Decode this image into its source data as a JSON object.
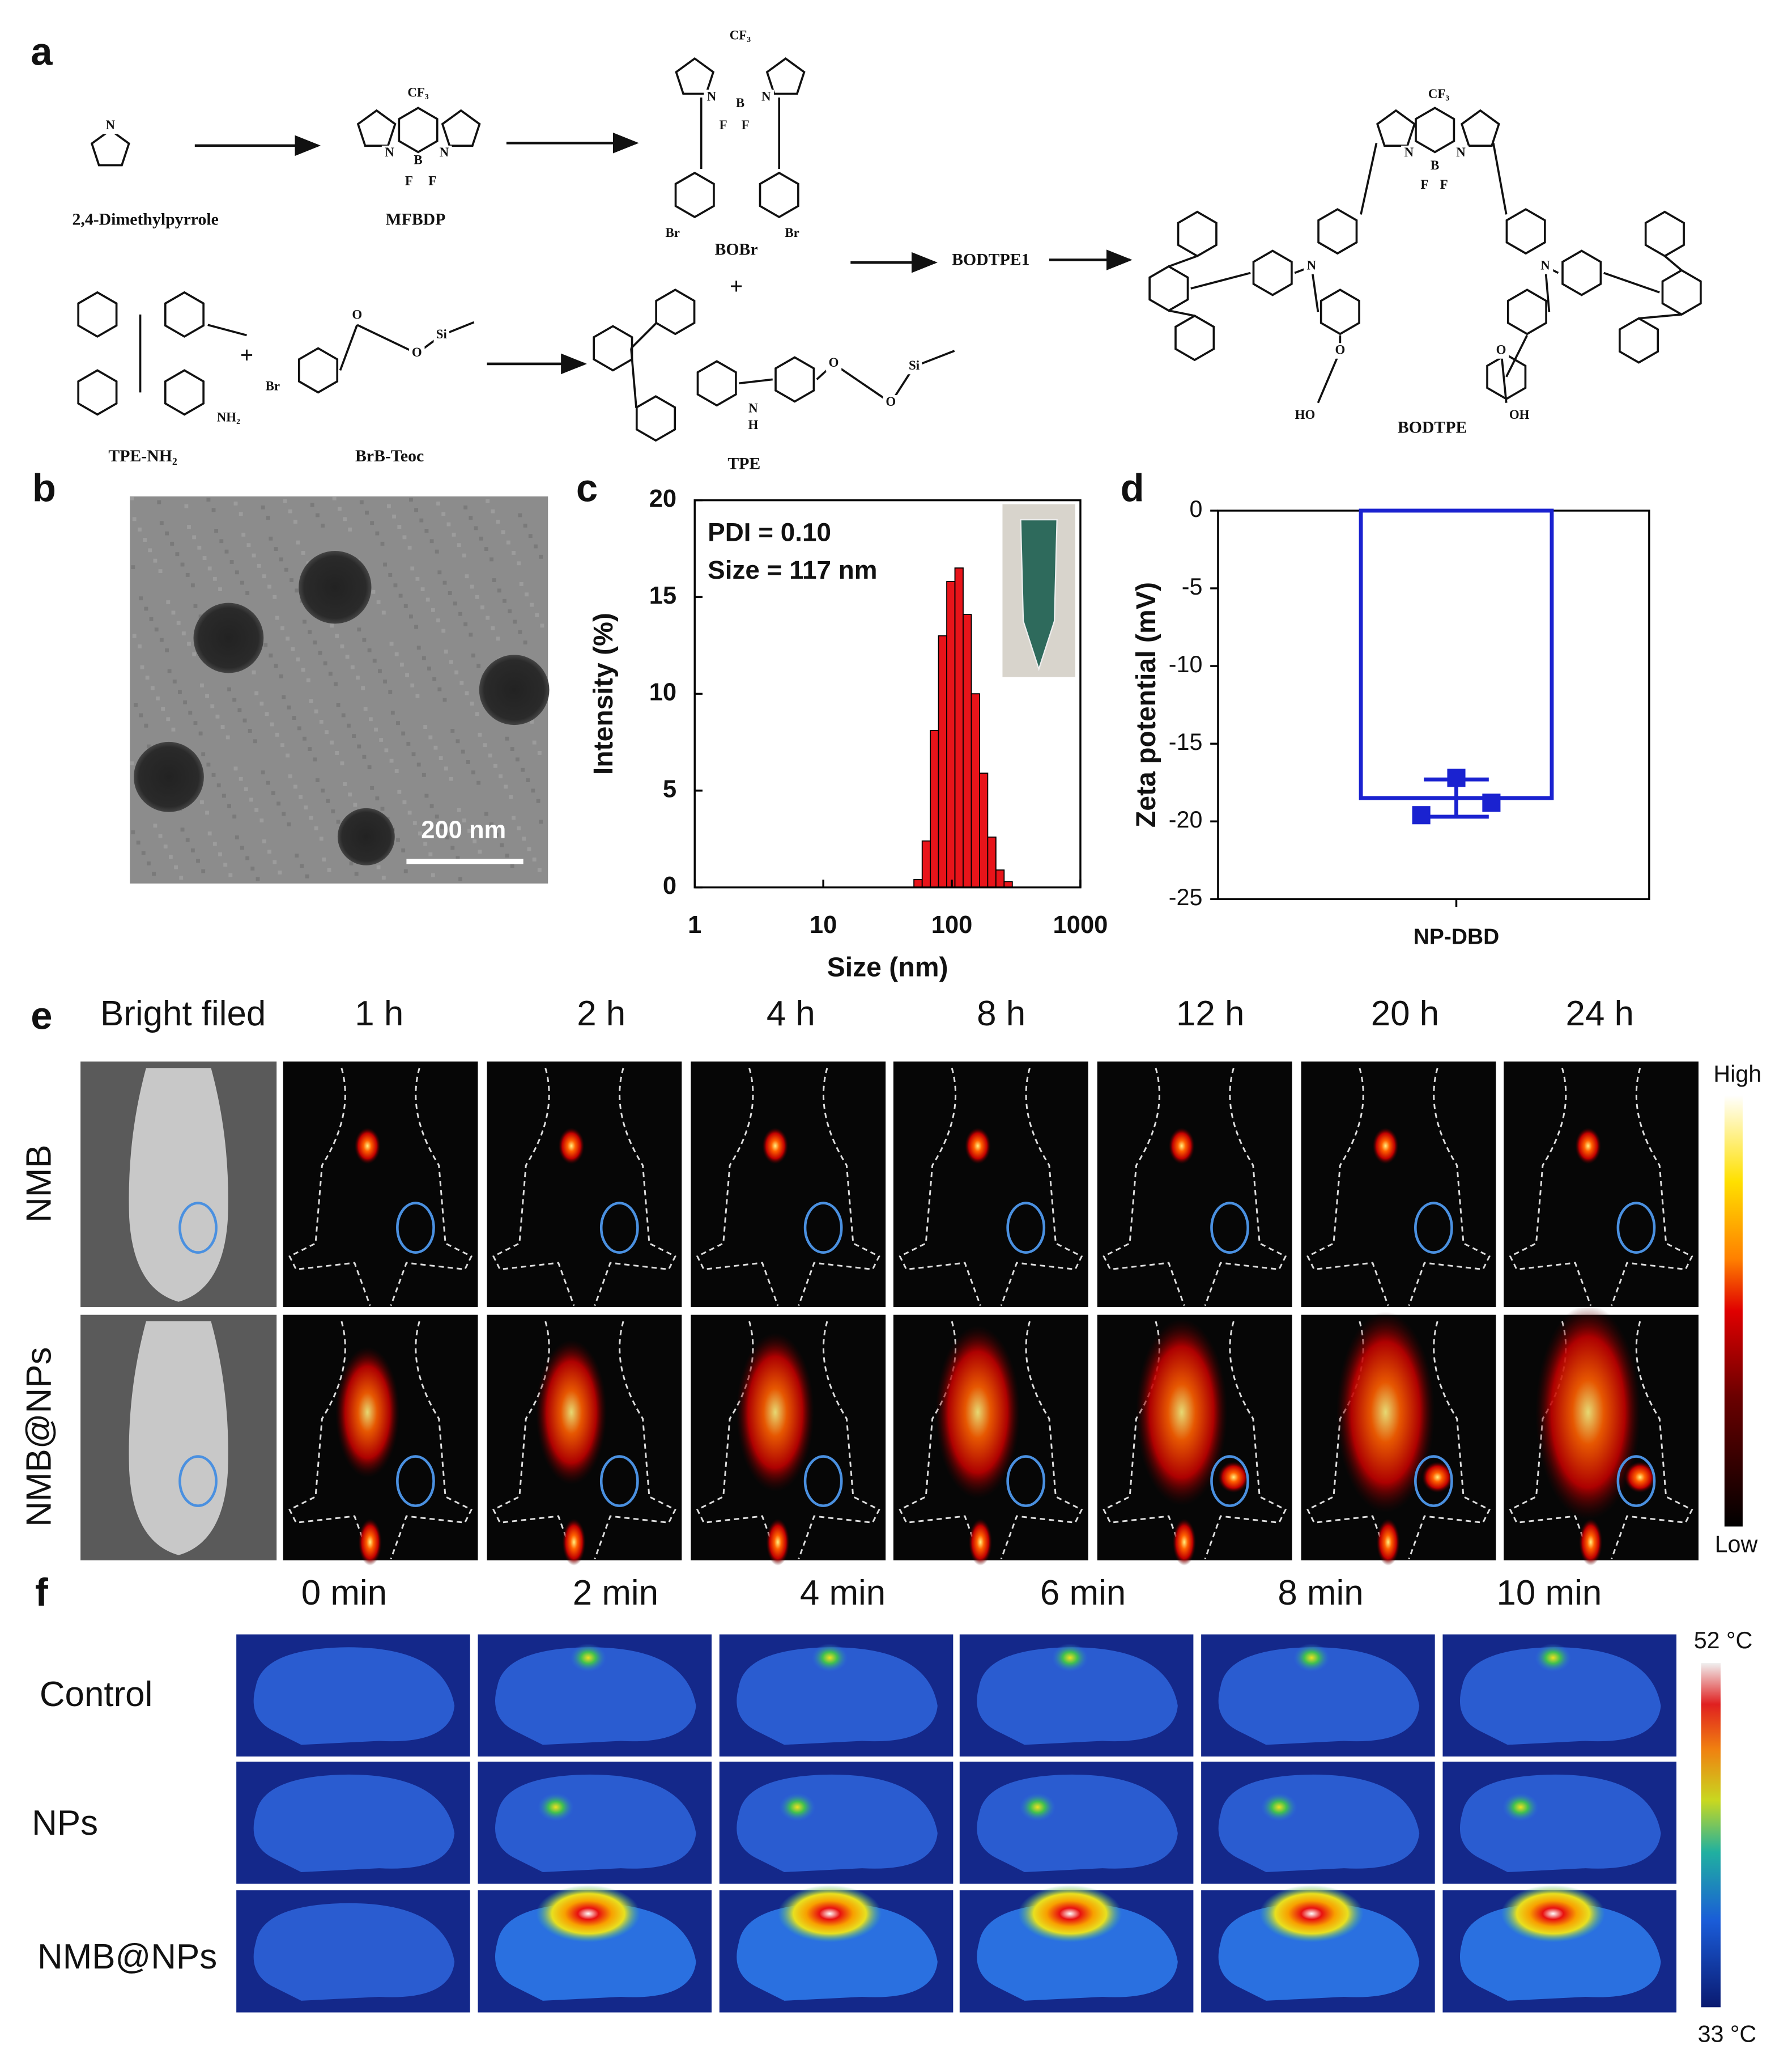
{
  "panel_labels": [
    "a",
    "b",
    "c",
    "d",
    "e",
    "f"
  ],
  "scheme": {
    "compounds": [
      "2,4-Dimethylpyrrole",
      "MFBDP",
      "BOBr",
      "BODTPE1",
      "BODTPE",
      "TPE-NH₂",
      "BrB-Teoc",
      "TPE"
    ],
    "plus_signs": [
      "+",
      "+"
    ],
    "atom_labels": [
      "N",
      "CF₃",
      "N",
      "B",
      "N",
      "F",
      "F",
      "CF₃",
      "N",
      "B",
      "N",
      "F",
      "F",
      "Br",
      "Br",
      "NH₂",
      "Br",
      "O",
      "O",
      "Si",
      "N",
      "H",
      "O",
      "O",
      "Si",
      "CF₃",
      "N",
      "B",
      "N",
      "F",
      "F",
      "N",
      "N",
      "O",
      "O",
      "HO",
      "OH"
    ]
  },
  "tem": {
    "scale_bar": "200 nm"
  },
  "chart_data": [
    {
      "type": "histogram",
      "xlabel": "Size (nm)",
      "ylabel": "Intensity (%)",
      "log_x": true,
      "annotations": [
        "PDI = 0.10",
        "Size = 117 nm"
      ],
      "bins": [
        50.7,
        58.8,
        68.1,
        78.8,
        91.3,
        105.7,
        122.4,
        141.8,
        164.2,
        190.1,
        220.2,
        255.0,
        295.3
      ],
      "values": [
        0.4,
        2.4,
        8.1,
        13.0,
        15.8,
        16.5,
        14.1,
        10.0,
        5.9,
        2.6,
        0.9,
        0.3
      ],
      "color": "#e8141a",
      "xlim": [
        1,
        1000
      ],
      "xticks": [
        1,
        10,
        100,
        1000
      ],
      "ylim": [
        0,
        20
      ],
      "yticks": [
        0,
        5,
        10,
        15,
        20
      ]
    },
    {
      "type": "bar",
      "ylabel": "Zeta potential (mV)",
      "categories": [
        "NP-DBD"
      ],
      "values": [
        -18.5
      ],
      "error": [
        1.2
      ],
      "points": [
        [
          -17.2,
          -19.6,
          -18.8
        ]
      ],
      "color": "#1a22d0",
      "ylim": [
        -25,
        0
      ],
      "yticks": [
        0,
        -5,
        -10,
        -15,
        -20,
        -25
      ]
    }
  ],
  "imaging": {
    "columns": [
      "Bright filed",
      "1 h",
      "2 h",
      "4 h",
      "8 h",
      "12 h",
      "20 h",
      "24 h"
    ],
    "rows": [
      "NMB",
      "NMB@NPs"
    ],
    "colorbar_high": "High",
    "colorbar_low": "Low"
  },
  "thermal": {
    "columns": [
      "0 min",
      "2 min",
      "4 min",
      "6 min",
      "8 min",
      "10 min"
    ],
    "rows": [
      "Control",
      "NPs",
      "NMB@NPs"
    ],
    "colorbar_max": "52 °C",
    "colorbar_min": "33 °C"
  }
}
